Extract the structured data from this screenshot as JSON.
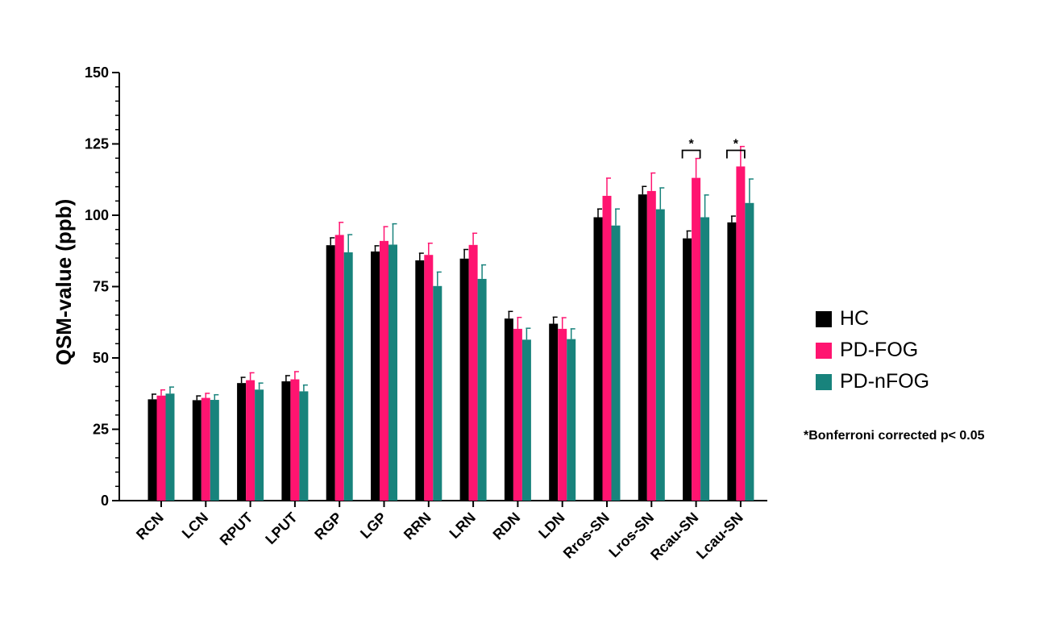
{
  "chart_data": {
    "type": "bar",
    "ylabel": "QSM-value (ppb)",
    "xlabel": "",
    "ylim": [
      0,
      150
    ],
    "yticks": [
      0,
      25,
      50,
      75,
      100,
      125,
      150
    ],
    "categories": [
      "RCN",
      "LCN",
      "RPUT",
      "LPUT",
      "RGP",
      "LGP",
      "RRN",
      "LRN",
      "RDN",
      "LDN",
      "Rros-SN",
      "Lros-SN",
      "Rcau-SN",
      "Lcau-SN"
    ],
    "series": [
      {
        "name": "HC",
        "color": "#000000",
        "values": [
          35.5,
          35.2,
          41.2,
          41.8,
          89.5,
          87.3,
          84.2,
          84.8,
          63.8,
          62.0,
          99.3,
          107.3,
          91.9,
          97.5
        ],
        "errors": [
          1.8,
          1.5,
          2.0,
          2.0,
          2.6,
          2.0,
          2.5,
          3.2,
          2.5,
          2.3,
          2.9,
          2.8,
          2.6,
          2.2
        ]
      },
      {
        "name": "PD-FOG",
        "color": "#ff1470",
        "values": [
          36.8,
          36.0,
          42.2,
          42.5,
          93.1,
          91.0,
          86.1,
          89.6,
          60.2,
          60.2,
          106.8,
          108.5,
          113.1,
          117.1
        ],
        "errors": [
          2.0,
          1.6,
          2.6,
          2.7,
          4.4,
          5.0,
          4.1,
          4.1,
          4.0,
          3.9,
          6.2,
          6.3,
          6.8,
          7.0
        ]
      },
      {
        "name": "PD-nFOG",
        "color": "#18837c",
        "values": [
          37.5,
          35.3,
          38.9,
          38.3,
          87.0,
          89.7,
          75.2,
          77.7,
          56.4,
          56.6,
          96.4,
          102.1,
          99.3,
          104.3
        ],
        "errors": [
          2.3,
          1.8,
          2.3,
          2.2,
          6.2,
          7.3,
          4.9,
          4.9,
          4.0,
          3.6,
          5.8,
          7.5,
          7.8,
          8.4
        ]
      }
    ],
    "legend_position": "right",
    "grid": false,
    "annotations": [
      {
        "text": "*",
        "category": "Rcau-SN",
        "between": [
          "HC",
          "PD-FOG"
        ]
      },
      {
        "text": "*",
        "category": "Lcau-SN",
        "between": [
          "HC",
          "PD-FOG"
        ]
      }
    ],
    "note": "*Bonferroni corrected p< 0.05"
  }
}
